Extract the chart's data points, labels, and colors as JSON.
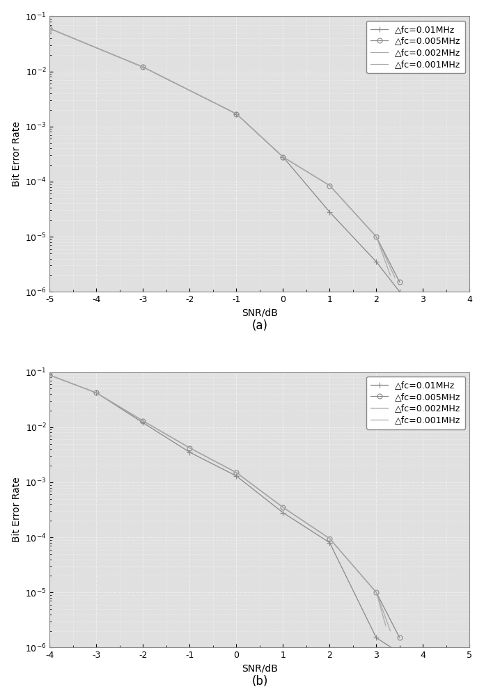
{
  "subplot_a": {
    "xlabel": "SNR/dB",
    "ylabel": "Bit Error Rate",
    "xlim": [
      -5,
      4
    ],
    "xticks": [
      -5,
      -4,
      -3,
      -2,
      -1,
      0,
      1,
      2,
      3,
      4
    ],
    "ylim_log": [
      -6,
      -1
    ],
    "label": "(a)",
    "series": [
      {
        "label": "△fc=0.01MHz",
        "marker": "+",
        "linestyle": "-",
        "color": "#888888",
        "markersize": 6,
        "x": [
          -5,
          -3,
          -1,
          0,
          1,
          2,
          2.5
        ],
        "y": [
          0.06,
          0.012,
          0.0017,
          0.00028,
          2.8e-05,
          3.5e-06,
          1e-06
        ]
      },
      {
        "label": "△fc=0.005MHz",
        "marker": "o",
        "linestyle": "-",
        "color": "#888888",
        "markersize": 5,
        "x": [
          -5,
          -3,
          -1,
          0,
          1,
          2,
          2.5
        ],
        "y": [
          0.06,
          0.012,
          0.0017,
          0.00028,
          8.5e-05,
          1e-05,
          1.5e-06
        ]
      },
      {
        "label": "△fc=0.002MHz",
        "marker": "",
        "linestyle": "-",
        "color": "#aaaaaa",
        "markersize": 5,
        "x": [
          -5,
          -3,
          -1,
          0,
          1,
          2,
          2.4
        ],
        "y": [
          0.06,
          0.012,
          0.0017,
          0.00028,
          8.5e-05,
          1e-05,
          1.8e-06
        ]
      },
      {
        "label": "△fc=0.001MHz",
        "marker": "",
        "linestyle": "-",
        "color": "#aaaaaa",
        "markersize": 5,
        "x": [
          -5,
          -3,
          -1,
          0,
          1,
          2,
          2.3
        ],
        "y": [
          0.06,
          0.012,
          0.0017,
          0.00028,
          8.5e-05,
          1e-05,
          2e-06
        ]
      }
    ]
  },
  "subplot_b": {
    "xlabel": "SNR/dB",
    "ylabel": "Bit Error Rate",
    "xlim": [
      -4,
      5
    ],
    "xticks": [
      -4,
      -3,
      -2,
      -1,
      0,
      1,
      2,
      3,
      4,
      5
    ],
    "ylim_log": [
      -6,
      -1
    ],
    "label": "(b)",
    "series": [
      {
        "label": "△fc=0.01MHz",
        "marker": "+",
        "linestyle": "-",
        "color": "#888888",
        "markersize": 6,
        "x": [
          -4,
          -3,
          -2,
          -1,
          0,
          1,
          2,
          3,
          3.5
        ],
        "y": [
          0.088,
          0.042,
          0.012,
          0.0035,
          0.0013,
          0.00028,
          8e-05,
          1.5e-06,
          8e-07
        ]
      },
      {
        "label": "△fc=0.005MHz",
        "marker": "o",
        "linestyle": "-",
        "color": "#888888",
        "markersize": 5,
        "x": [
          -4,
          -3,
          -2,
          -1,
          0,
          1,
          2,
          3,
          3.5
        ],
        "y": [
          0.088,
          0.042,
          0.013,
          0.0042,
          0.0015,
          0.00035,
          9.5e-05,
          1e-05,
          1.5e-06
        ]
      },
      {
        "label": "△fc=0.002MHz",
        "marker": "",
        "linestyle": "-",
        "color": "#aaaaaa",
        "markersize": 5,
        "x": [
          -4,
          -3,
          -2,
          -1,
          0,
          1,
          2,
          3,
          3.3
        ],
        "y": [
          0.088,
          0.042,
          0.013,
          0.0042,
          0.0015,
          0.00035,
          9.5e-05,
          1e-05,
          2e-06
        ]
      },
      {
        "label": "△fc=0.001MHz",
        "marker": "",
        "linestyle": "-",
        "color": "#aaaaaa",
        "markersize": 5,
        "x": [
          -4,
          -3,
          -2,
          -1,
          0,
          1,
          2,
          3,
          3.2
        ],
        "y": [
          0.088,
          0.042,
          0.013,
          0.0042,
          0.0015,
          0.00035,
          9.5e-05,
          1e-05,
          2.5e-06
        ]
      }
    ]
  },
  "fig_bg_color": "#ffffff",
  "plot_bg_color": "#e0e0e0",
  "grid_major_color": "#ffffff",
  "grid_minor_color": "#ffffff",
  "label_fontsize": 10,
  "tick_fontsize": 9,
  "legend_fontsize": 9,
  "sublabel_fontsize": 12
}
